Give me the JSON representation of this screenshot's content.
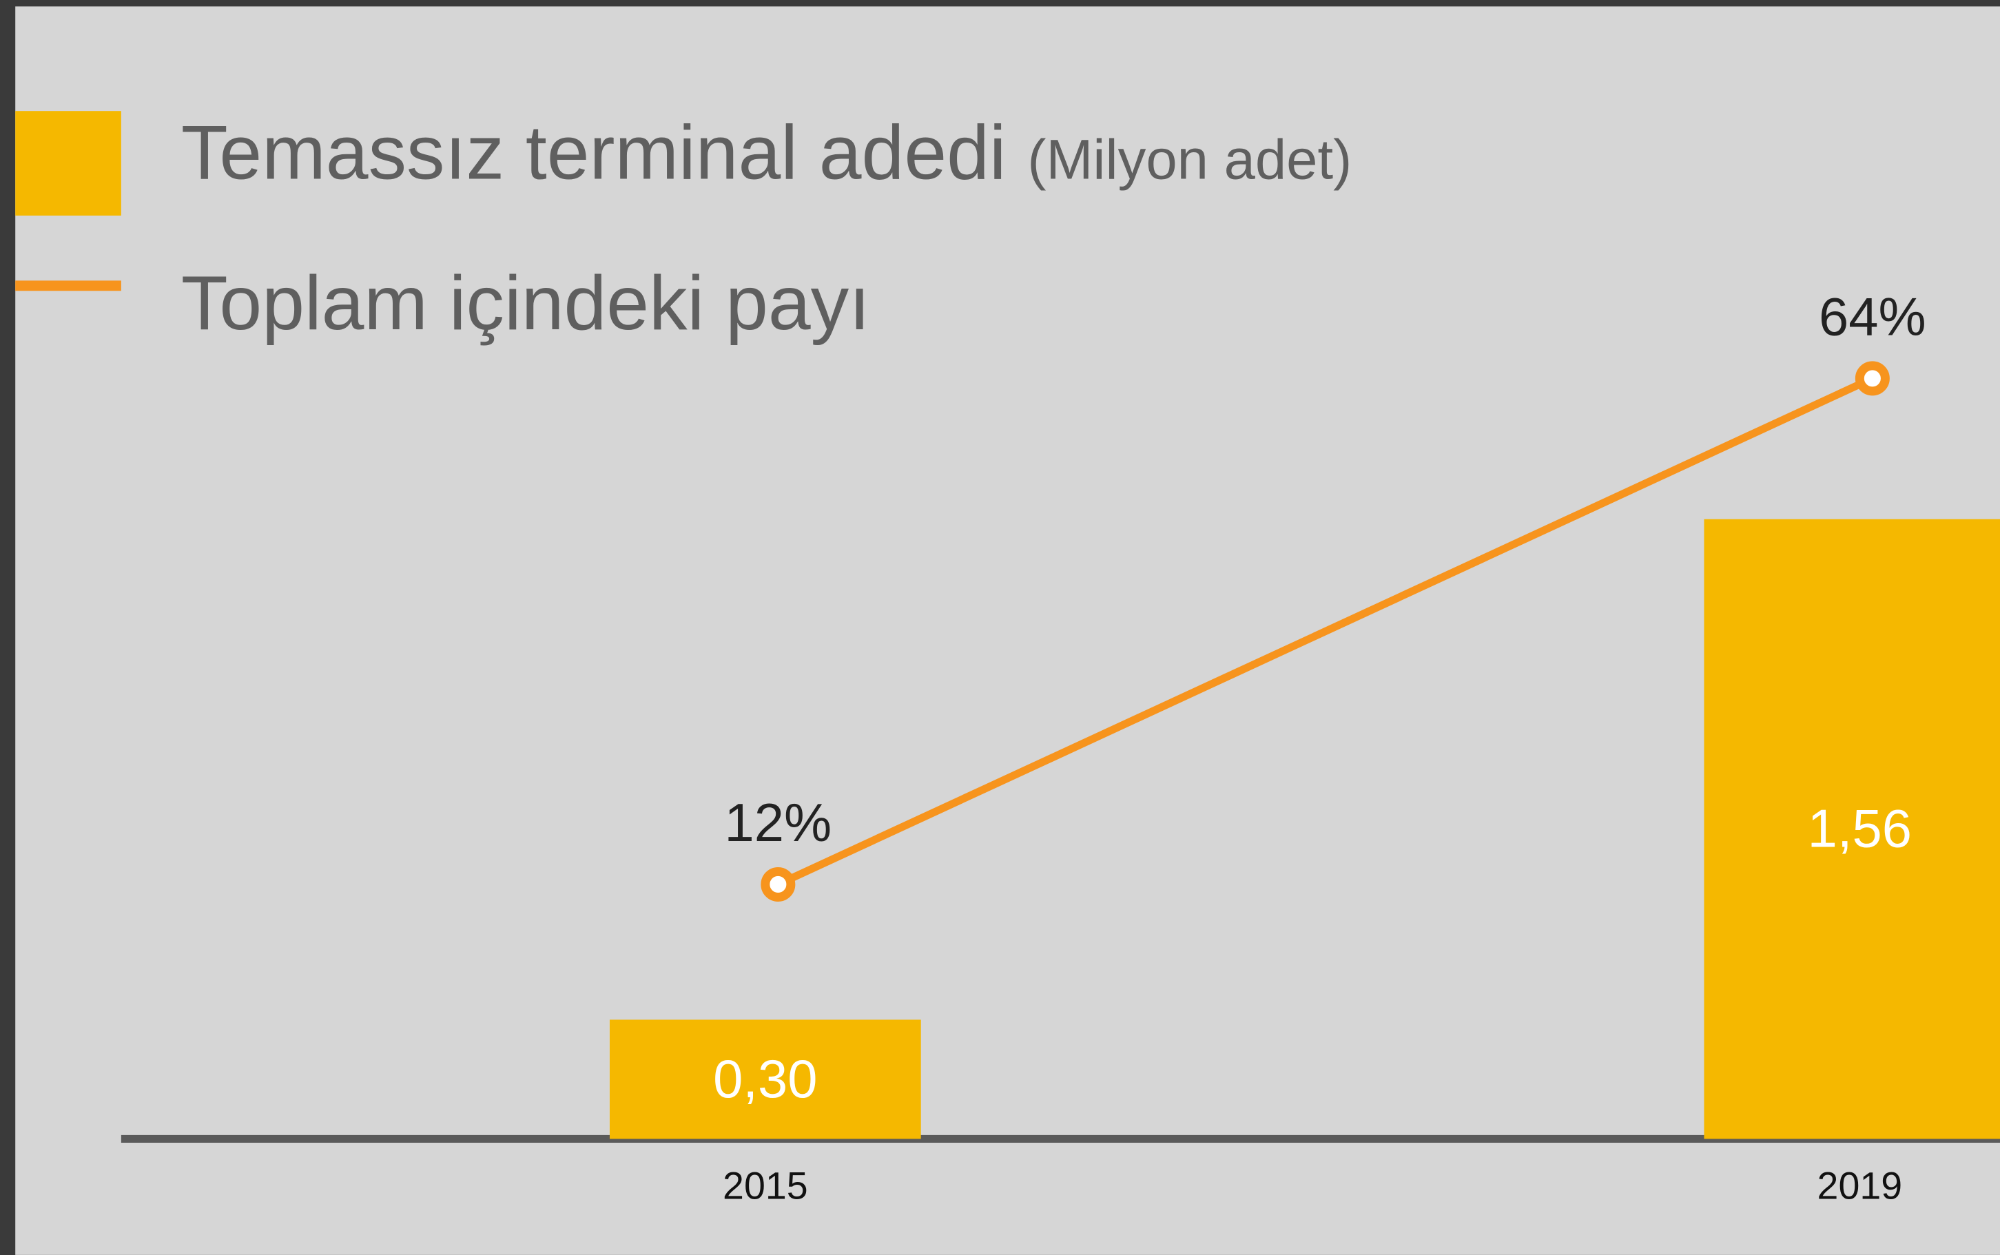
{
  "chart_data": {
    "type": "bar-line",
    "categories": [
      "2015",
      "2019"
    ],
    "series": [
      {
        "name": "Temassız terminal adedi",
        "unit_label": "(Milyon adet)",
        "type": "bar",
        "color": "#f5b800",
        "values": [
          0.3,
          1.56
        ],
        "value_labels": [
          "0,30",
          "1,56"
        ]
      },
      {
        "name": "Toplam içindeki payı",
        "type": "line",
        "axis": "y2",
        "color": "#f7941d",
        "values": [
          12,
          64
        ],
        "value_labels": [
          "12%",
          "64%"
        ]
      }
    ],
    "ylim": [
      0,
      2
    ],
    "y2lim": [
      0,
      100
    ]
  }
}
